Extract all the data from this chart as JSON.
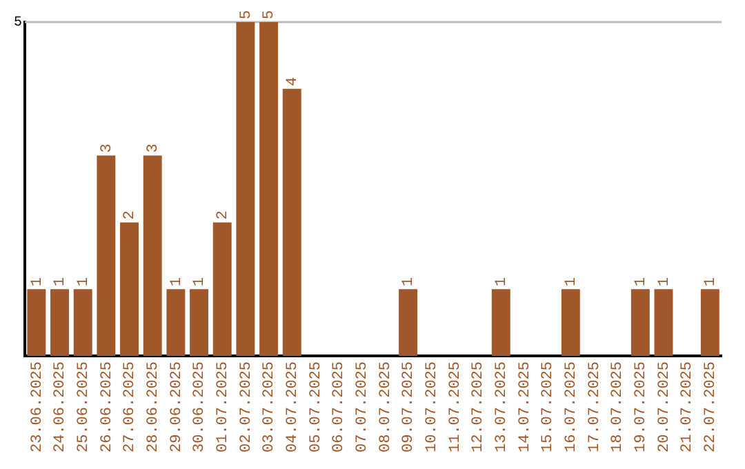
{
  "chart_data": {
    "type": "bar",
    "categories": [
      "23.06.2025",
      "24.06.2025",
      "25.06.2025",
      "26.06.2025",
      "27.06.2025",
      "28.06.2025",
      "29.06.2025",
      "30.06.2025",
      "01.07.2025",
      "02.07.2025",
      "03.07.2025",
      "04.07.2025",
      "05.07.2025",
      "06.07.2025",
      "07.07.2025",
      "08.07.2025",
      "09.07.2025",
      "10.07.2025",
      "11.07.2025",
      "12.07.2025",
      "13.07.2025",
      "14.07.2025",
      "15.07.2025",
      "16.07.2025",
      "17.07.2025",
      "18.07.2025",
      "19.07.2025",
      "20.07.2025",
      "21.07.2025",
      "22.07.2025"
    ],
    "values": [
      1,
      1,
      1,
      3,
      2,
      3,
      1,
      1,
      2,
      5,
      5,
      4,
      0,
      0,
      0,
      0,
      1,
      0,
      0,
      0,
      1,
      0,
      0,
      1,
      0,
      0,
      1,
      1,
      0,
      1
    ],
    "value_labels": [
      "1",
      "1",
      "1",
      "3",
      "2",
      "3",
      "1",
      "1",
      "2",
      "5",
      "5",
      "4",
      null,
      null,
      null,
      null,
      "1",
      null,
      null,
      null,
      "1",
      null,
      null,
      "1",
      null,
      null,
      "1",
      "1",
      null,
      "1"
    ],
    "color": "#a0572a",
    "ylim": [
      0,
      5
    ],
    "yticks": [
      5
    ],
    "ref_lines": [
      {
        "axis": "y",
        "value": 5,
        "color": "#bdbdbd"
      }
    ],
    "legend": false
  }
}
